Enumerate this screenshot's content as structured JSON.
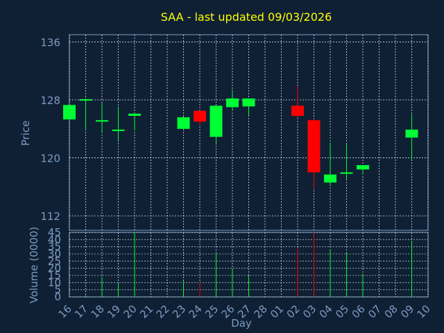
{
  "chart_data": [
    {
      "type": "candlestick",
      "title": "SAA - last updated 09/03/2026",
      "ylabel": "Price",
      "ylim": [
        110,
        137
      ],
      "y_ticks": [
        "136",
        "128",
        "120",
        "112"
      ],
      "x_ticks": [
        "16",
        "17",
        "18",
        "19",
        "20",
        "21",
        "22",
        "23",
        "24",
        "25",
        "26",
        "27",
        "28",
        "01",
        "02",
        "03",
        "04",
        "05",
        "06",
        "07",
        "08",
        "09",
        "10"
      ],
      "grid": true,
      "colors": {
        "up": "#00ff33",
        "down": "#ff0000",
        "grid": "#ffffff",
        "axis": "#7d9bbf",
        "title": "#ffff00",
        "background": "#0f2035"
      },
      "candles": [
        {
          "day": "16",
          "open": 125.3,
          "high": 127.3,
          "low": 125.3,
          "close": 127.3
        },
        {
          "day": "17",
          "open": 127.9,
          "high": 128.1,
          "low": 123.9,
          "close": 128.1
        },
        {
          "day": "18",
          "open": 125.0,
          "high": 127.6,
          "low": 123.4,
          "close": 125.2
        },
        {
          "day": "19",
          "open": 123.7,
          "high": 127.0,
          "low": 122.4,
          "close": 123.9
        },
        {
          "day": "20",
          "open": 125.8,
          "high": 126.2,
          "low": 123.8,
          "close": 126.1
        },
        {
          "day": "23",
          "open": 124.0,
          "high": 125.7,
          "low": 124.0,
          "close": 125.6
        },
        {
          "day": "24",
          "open": 126.5,
          "high": 126.5,
          "low": 124.6,
          "close": 125.0
        },
        {
          "day": "25",
          "open": 122.9,
          "high": 127.2,
          "low": 122.0,
          "close": 127.2
        },
        {
          "day": "26",
          "open": 127.0,
          "high": 129.4,
          "low": 126.6,
          "close": 128.2
        },
        {
          "day": "27",
          "open": 127.1,
          "high": 128.2,
          "low": 125.9,
          "close": 128.2
        },
        {
          "day": "02",
          "open": 127.2,
          "high": 129.9,
          "low": 125.5,
          "close": 125.8
        },
        {
          "day": "03",
          "open": 125.2,
          "high": 125.4,
          "low": 115.8,
          "close": 118.0
        },
        {
          "day": "04",
          "open": 116.6,
          "high": 122.1,
          "low": 116.1,
          "close": 117.7
        },
        {
          "day": "05",
          "open": 117.8,
          "high": 122.0,
          "low": 117.1,
          "close": 118.0
        },
        {
          "day": "06",
          "open": 118.4,
          "high": 119.0,
          "low": 117.7,
          "close": 119.0
        },
        {
          "day": "09",
          "open": 122.8,
          "high": 126.0,
          "low": 119.8,
          "close": 123.9
        }
      ]
    },
    {
      "type": "bar",
      "ylabel": "Volume (0000)",
      "xlabel": "Day",
      "ylim": [
        0,
        45
      ],
      "y_ticks": [
        "45",
        "40",
        "35",
        "30",
        "25",
        "20",
        "15",
        "10",
        "5",
        "0"
      ],
      "grid": true,
      "volumes": [
        {
          "day": "17",
          "value": 1,
          "color": "#00ff33"
        },
        {
          "day": "18",
          "value": 14,
          "color": "#00ff33"
        },
        {
          "day": "19",
          "value": 10,
          "color": "#00ff33"
        },
        {
          "day": "20",
          "value": 45,
          "color": "#00ff33"
        },
        {
          "day": "23",
          "value": 11,
          "color": "#00ff33"
        },
        {
          "day": "24",
          "value": 10,
          "color": "#ff0000"
        },
        {
          "day": "25",
          "value": 30,
          "color": "#00ff33"
        },
        {
          "day": "26",
          "value": 20,
          "color": "#00ff33"
        },
        {
          "day": "27",
          "value": 15,
          "color": "#00ff33"
        },
        {
          "day": "02",
          "value": 34,
          "color": "#ff0000"
        },
        {
          "day": "03",
          "value": 45,
          "color": "#ff0000"
        },
        {
          "day": "04",
          "value": 33,
          "color": "#00ff33"
        },
        {
          "day": "05",
          "value": 31,
          "color": "#00ff33"
        },
        {
          "day": "06",
          "value": 16,
          "color": "#00ff33"
        },
        {
          "day": "09",
          "value": 39,
          "color": "#00ff33"
        }
      ]
    }
  ]
}
